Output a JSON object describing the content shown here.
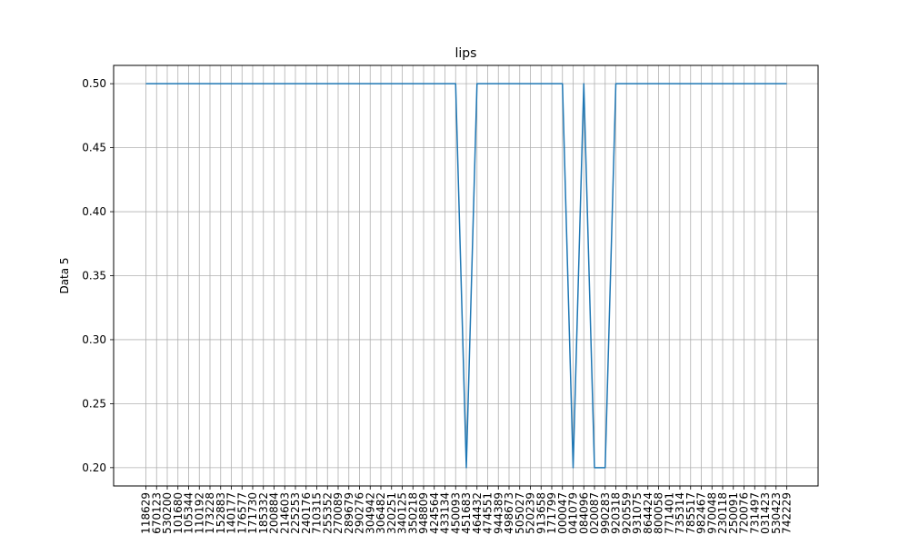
{
  "chart_data": {
    "type": "line",
    "title": "lips",
    "xlabel": "",
    "ylabel": "Data 5",
    "ylim": [
      0.1857,
      0.5143
    ],
    "yticks": [
      "0.20",
      "0.25",
      "0.30",
      "0.35",
      "0.40",
      "0.45",
      "0.50"
    ],
    "grid": true,
    "series_color": "#1f77b4",
    "categories": [
      "118629",
      "670123",
      "530200",
      "101680",
      "105344",
      "110192",
      "173228",
      "152883",
      "140177",
      "176577",
      "171730",
      "185332",
      "200884",
      "214603",
      "225253",
      "240176",
      "710315",
      "255352",
      "270089",
      "289679",
      "290276",
      "304942",
      "306482",
      "320251",
      "340125",
      "350218",
      "948809",
      "424564",
      "433134",
      "450093",
      "451683",
      "464432",
      "474551",
      "944389",
      "498673",
      "505027",
      "520239",
      "913658",
      "171799",
      "000047",
      "041079",
      "084096",
      "020087",
      "990283",
      "920318",
      "920559",
      "931075",
      "864424",
      "800058",
      "771401",
      "735314",
      "785517",
      "982467",
      "970048",
      "230118",
      "250091",
      "720076",
      "731497",
      "031423",
      "530423",
      "742229"
    ],
    "series": [
      {
        "values": [
          0.5,
          0.5,
          0.5,
          0.5,
          0.5,
          0.5,
          0.5,
          0.5,
          0.5,
          0.5,
          0.5,
          0.5,
          0.5,
          0.5,
          0.5,
          0.5,
          0.5,
          0.5,
          0.5,
          0.5,
          0.5,
          0.5,
          0.5,
          0.5,
          0.5,
          0.5,
          0.5,
          0.5,
          0.5,
          0.5,
          0.2,
          0.5,
          0.5,
          0.5,
          0.5,
          0.5,
          0.5,
          0.5,
          0.5,
          0.5,
          0.2,
          0.5,
          0.2,
          0.2,
          0.5,
          0.5,
          0.5,
          0.5,
          0.5,
          0.5,
          0.5,
          0.5,
          0.5,
          0.5,
          0.5,
          0.5,
          0.5,
          0.5,
          0.5,
          0.5,
          0.5
        ]
      }
    ]
  }
}
